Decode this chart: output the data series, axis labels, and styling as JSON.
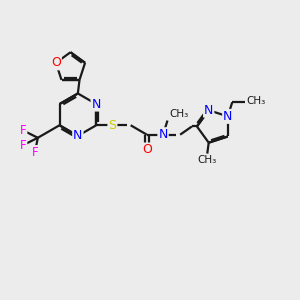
{
  "bg_color": "#ececec",
  "bond_color": "#1a1a1a",
  "N_color": "#0000ff",
  "O_color": "#ff0000",
  "S_color": "#cccc00",
  "F_color": "#ff00ff",
  "line_width": 1.6,
  "figsize": [
    3.0,
    3.0
  ],
  "dpi": 100,
  "xlim": [
    0,
    10
  ],
  "ylim": [
    0,
    10
  ]
}
